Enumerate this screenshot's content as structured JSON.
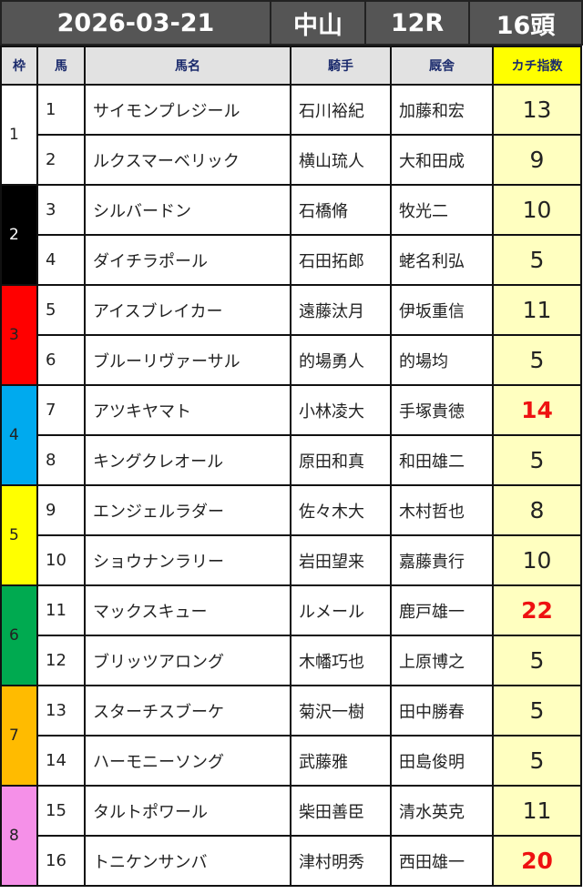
{
  "header": {
    "date": "2026-03-21",
    "venue": "中山",
    "race": "12R",
    "runners": "16頭"
  },
  "columns": {
    "waku": "枠",
    "num": "馬",
    "name": "馬名",
    "jockey": "騎手",
    "trainer": "厩舎",
    "score": "カチ指数"
  },
  "colors": {
    "waku": {
      "1": "#ffffff",
      "2": "#000000",
      "3": "#ff0000",
      "4": "#00aaee",
      "5": "#ffff00",
      "6": "#00aa50",
      "7": "#ffbb00",
      "8": "#f590e8"
    },
    "waku_text": {
      "1": "#222",
      "2": "#fff",
      "3": "#222",
      "4": "#222",
      "5": "#222",
      "6": "#222",
      "7": "#222",
      "8": "#222"
    },
    "highlight": "#ee1111"
  },
  "rows": [
    {
      "waku": "1",
      "num": "1",
      "name": "サイモンプレジール",
      "jockey": "石川裕紀",
      "trainer": "加藤和宏",
      "score": "13",
      "hi": false
    },
    {
      "waku": "1",
      "num": "2",
      "name": "ルクスマーベリック",
      "jockey": "横山琉人",
      "trainer": "大和田成",
      "score": "9",
      "hi": false
    },
    {
      "waku": "2",
      "num": "3",
      "name": "シルバードン",
      "jockey": "石橋脩",
      "trainer": "牧光二",
      "score": "10",
      "hi": false
    },
    {
      "waku": "2",
      "num": "4",
      "name": "ダイチラポール",
      "jockey": "石田拓郎",
      "trainer": "蛯名利弘",
      "score": "5",
      "hi": false
    },
    {
      "waku": "3",
      "num": "5",
      "name": "アイスブレイカー",
      "jockey": "遠藤汰月",
      "trainer": "伊坂重信",
      "score": "11",
      "hi": false
    },
    {
      "waku": "3",
      "num": "6",
      "name": "ブルーリヴァーサル",
      "jockey": "的場勇人",
      "trainer": "的場均",
      "score": "5",
      "hi": false
    },
    {
      "waku": "4",
      "num": "7",
      "name": "アツキヤマト",
      "jockey": "小林凌大",
      "trainer": "手塚貴徳",
      "score": "14",
      "hi": true
    },
    {
      "waku": "4",
      "num": "8",
      "name": "キングクレオール",
      "jockey": "原田和真",
      "trainer": "和田雄二",
      "score": "5",
      "hi": false
    },
    {
      "waku": "5",
      "num": "9",
      "name": "エンジェルラダー",
      "jockey": "佐々木大",
      "trainer": "木村哲也",
      "score": "8",
      "hi": false
    },
    {
      "waku": "5",
      "num": "10",
      "name": "ショウナンラリー",
      "jockey": "岩田望来",
      "trainer": "嘉藤貴行",
      "score": "10",
      "hi": false
    },
    {
      "waku": "6",
      "num": "11",
      "name": "マックスキュー",
      "jockey": "ルメール",
      "trainer": "鹿戸雄一",
      "score": "22",
      "hi": true
    },
    {
      "waku": "6",
      "num": "12",
      "name": "ブリッツアロング",
      "jockey": "木幡巧也",
      "trainer": "上原博之",
      "score": "5",
      "hi": false
    },
    {
      "waku": "7",
      "num": "13",
      "name": "スターチスブーケ",
      "jockey": "菊沢一樹",
      "trainer": "田中勝春",
      "score": "5",
      "hi": false
    },
    {
      "waku": "7",
      "num": "14",
      "name": "ハーモニーソング",
      "jockey": "武藤雅",
      "trainer": "田島俊明",
      "score": "5",
      "hi": false
    },
    {
      "waku": "8",
      "num": "15",
      "name": "タルトポワール",
      "jockey": "柴田善臣",
      "trainer": "清水英克",
      "score": "11",
      "hi": false
    },
    {
      "waku": "8",
      "num": "16",
      "name": "トニケンサンバ",
      "jockey": "津村明秀",
      "trainer": "西田雄一",
      "score": "20",
      "hi": true
    }
  ]
}
